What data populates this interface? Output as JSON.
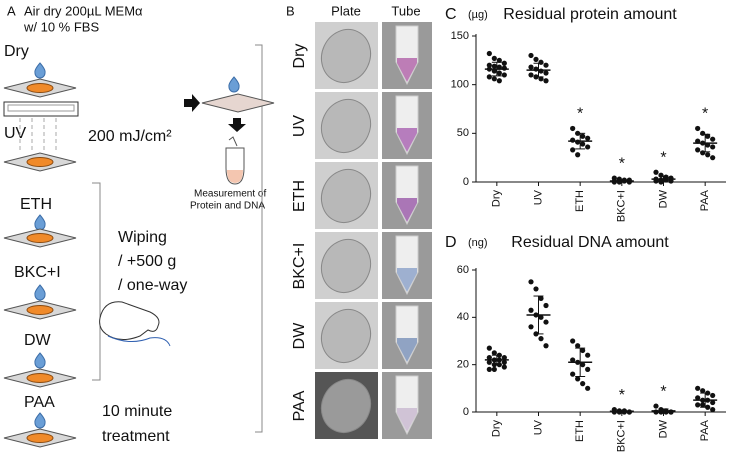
{
  "panel_a": {
    "label": "A",
    "header": [
      "Air dry 200µL MEMα",
      "w/ 10 % FBS"
    ],
    "steps": [
      "Dry",
      "UV",
      "ETH",
      "BKC+I",
      "DW",
      "PAA"
    ],
    "uv_dose": "200 mJ/cm²",
    "wiping": [
      "Wiping",
      "/ +500 g",
      "/ one-way"
    ],
    "paa_time": [
      "10 minute",
      "treatment"
    ],
    "measurement": [
      "Measurement of",
      "Protein and DNA"
    ]
  },
  "panel_b": {
    "label": "B",
    "columns": [
      "Plate",
      "Tube"
    ],
    "rows": [
      "Dry",
      "UV",
      "ETH",
      "BKC+I",
      "DW",
      "PAA"
    ]
  },
  "chart_data": [
    {
      "type": "strip",
      "label": "C",
      "title": "Residual protein amount",
      "unit": "(µg)",
      "categories": [
        "Dry",
        "UV",
        "ETH",
        "BKC+I",
        "DW",
        "PAA"
      ],
      "values": [
        [
          132,
          127,
          125,
          122,
          120,
          119,
          118,
          117,
          116,
          114,
          112,
          110,
          108,
          106,
          104
        ],
        [
          130,
          126,
          123,
          120,
          118,
          116,
          114,
          112,
          110,
          108,
          106,
          104
        ],
        [
          55,
          50,
          47,
          45,
          43,
          41,
          39,
          36,
          33,
          28
        ],
        [
          4,
          3,
          2,
          2,
          1,
          1,
          1,
          0,
          0,
          0
        ],
        [
          10,
          7,
          5,
          4,
          3,
          2,
          2,
          1,
          1,
          0
        ],
        [
          55,
          50,
          47,
          44,
          42,
          40,
          38,
          36,
          33,
          30,
          28,
          25
        ]
      ],
      "means": [
        116,
        115,
        42,
        1,
        3,
        40
      ],
      "sds": [
        7,
        7,
        8,
        1,
        3,
        9
      ],
      "significance": [
        null,
        null,
        "*",
        "*",
        "*",
        "*"
      ],
      "color": "#111111",
      "ylim": [
        0,
        150
      ],
      "yticks": [
        0,
        50,
        100,
        150
      ]
    },
    {
      "type": "strip",
      "label": "D",
      "title": "Residual DNA amount",
      "unit": "(ng)",
      "categories": [
        "Dry",
        "UV",
        "ETH",
        "BKC+I",
        "DW",
        "PAA"
      ],
      "values": [
        [
          27,
          25,
          24,
          23,
          23,
          22,
          22,
          21,
          21,
          20,
          20,
          19,
          18,
          18
        ],
        [
          55,
          52,
          48,
          45,
          43,
          41,
          40,
          38,
          36,
          33,
          31,
          28
        ],
        [
          30,
          28,
          26,
          24,
          22,
          21,
          20,
          18,
          16,
          14,
          12,
          10
        ],
        [
          1,
          0.5,
          0.5,
          0,
          0,
          0,
          0,
          0
        ],
        [
          2.5,
          1,
          0.5,
          0,
          0,
          0,
          0,
          0
        ],
        [
          10,
          9,
          8,
          7,
          6,
          5,
          5,
          4,
          3,
          3,
          2,
          1
        ]
      ],
      "means": [
        22,
        41,
        21,
        0.3,
        0.5,
        5
      ],
      "sds": [
        2,
        8,
        6,
        0.4,
        0.8,
        3
      ],
      "significance": [
        null,
        null,
        null,
        "*",
        "*",
        null
      ],
      "color": "#111111",
      "ylim": [
        0,
        60
      ],
      "yticks": [
        0,
        20,
        40,
        60
      ]
    }
  ]
}
